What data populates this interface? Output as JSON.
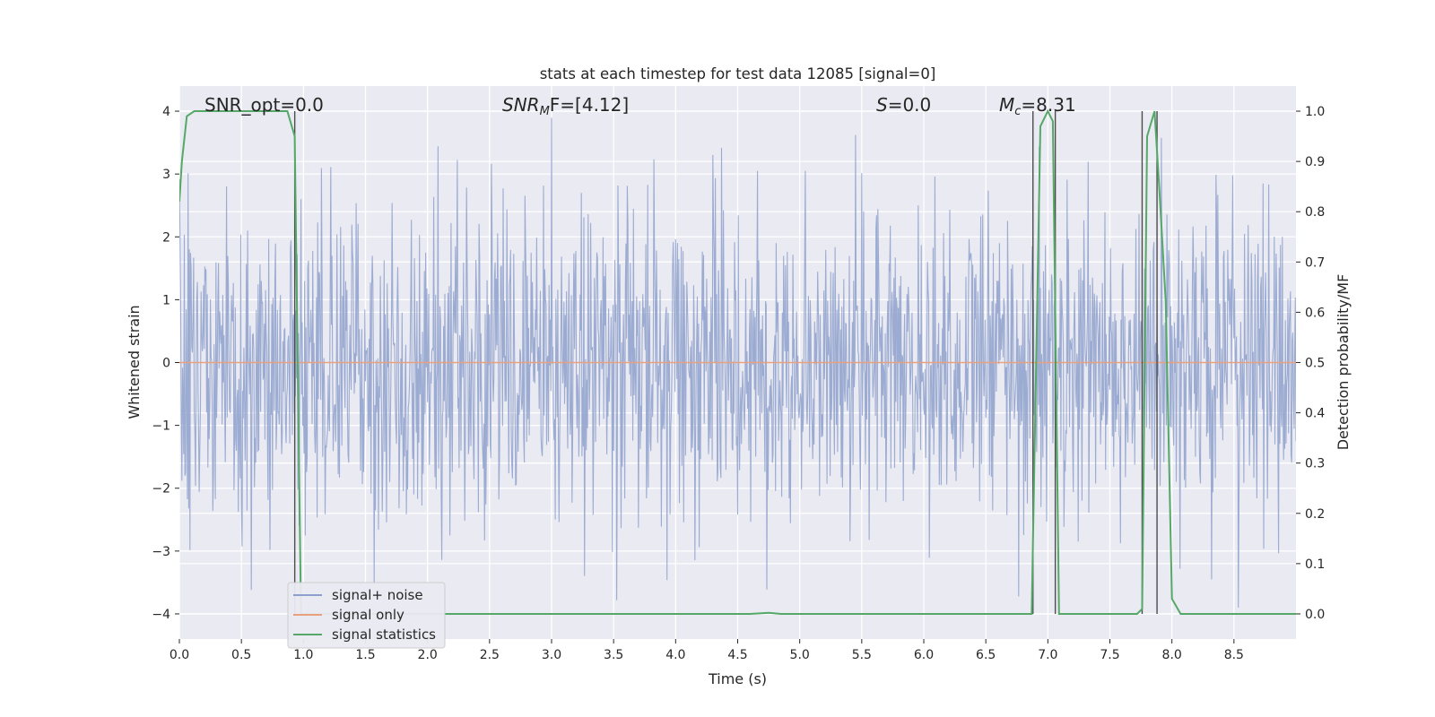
{
  "chart_data": {
    "type": "line",
    "title": "stats at each timestep for test data 12085 [signal=0]",
    "xlabel": "Time (s)",
    "ylabel": "Whitened strain",
    "y2label": "Detection probability/MF",
    "xlim": [
      0,
      9.0
    ],
    "ylim": [
      -4.4,
      4.4
    ],
    "y2lim": [
      -0.05,
      1.05
    ],
    "x_ticks": [
      0.0,
      0.5,
      1.0,
      1.5,
      2.0,
      2.5,
      3.0,
      3.5,
      4.0,
      4.5,
      5.0,
      5.5,
      6.0,
      6.5,
      7.0,
      7.5,
      8.0,
      8.5
    ],
    "x_tick_labels": [
      "0.0",
      "0.5",
      "1.0",
      "1.5",
      "2.0",
      "2.5",
      "3.0",
      "3.5",
      "4.0",
      "4.5",
      "5.0",
      "5.5",
      "6.0",
      "6.5",
      "7.0",
      "7.5",
      "8.0",
      "8.5"
    ],
    "y_ticks": [
      -4,
      -3,
      -2,
      -1,
      0,
      1,
      2,
      3,
      4
    ],
    "y_tick_labels": [
      "−4",
      "−3",
      "−2",
      "−1",
      "0",
      "1",
      "2",
      "3",
      "4"
    ],
    "y2_ticks": [
      0.0,
      0.1,
      0.2,
      0.3,
      0.4,
      0.5,
      0.6,
      0.7,
      0.8,
      0.9,
      1.0
    ],
    "y2_tick_labels": [
      "0.0",
      "0.1",
      "0.2",
      "0.3",
      "0.4",
      "0.5",
      "0.6",
      "0.7",
      "0.8",
      "0.9",
      "1.0"
    ],
    "grid": true,
    "legend_position": "lower-left",
    "annotations": [
      {
        "prefix": "SNR_opt=0.0",
        "italic": "",
        "sub": "",
        "suffix": ""
      },
      {
        "prefix": "",
        "italic": "SNR",
        "sub": "M",
        "suffix": "F=[4.12]"
      },
      {
        "prefix": "",
        "italic": "S",
        "sub": "",
        "suffix": "=0.0"
      },
      {
        "prefix": "",
        "italic": "M",
        "sub": "c",
        "suffix": "=8.31"
      }
    ],
    "vertical_markers_x": [
      0.93,
      6.88,
      7.06,
      7.76,
      7.88
    ],
    "series": [
      {
        "name": "signal+ noise",
        "color": "#8da0cb",
        "axis": "left",
        "description_values": "noise trace sampled every ~0.005 s, amplitude mostly within ±2.5, extremes near ±4"
      },
      {
        "name": "signal only",
        "color": "#e8a07e",
        "axis": "left",
        "x": [
          0.0,
          9.0
        ],
        "y": [
          0.0,
          0.0
        ]
      },
      {
        "name": "signal statistics",
        "color": "#55a868",
        "axis": "right",
        "x": [
          0.0,
          0.02,
          0.06,
          0.12,
          0.2,
          0.5,
          0.8,
          0.87,
          0.93,
          0.98,
          1.05,
          2.0,
          4.6,
          4.75,
          4.85,
          5.5,
          6.87,
          6.94,
          7.0,
          7.04,
          7.09,
          7.1,
          7.5,
          7.72,
          7.76,
          7.8,
          7.86,
          7.9,
          7.95,
          8.0,
          8.07,
          8.15,
          9.0
        ],
        "y": [
          0.82,
          0.9,
          0.99,
          1.0,
          1.0,
          1.0,
          1.0,
          1.0,
          0.95,
          0.0,
          0.0,
          0.0,
          0.0,
          0.002,
          0.0,
          0.0,
          0.0,
          0.97,
          1.0,
          0.98,
          0.0,
          0.0,
          0.0,
          0.0,
          0.01,
          0.95,
          1.0,
          0.84,
          0.62,
          0.03,
          0.0,
          0.0,
          0.0
        ]
      }
    ]
  }
}
